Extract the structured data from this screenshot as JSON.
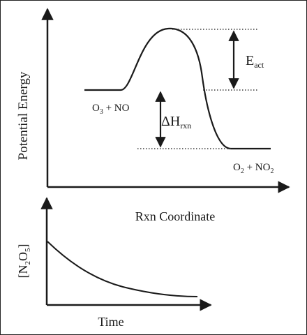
{
  "energy_diagram": {
    "y_axis_label": "Potential Energy",
    "x_axis_label": "Rxn Coordinate",
    "reactants": {
      "main": "O",
      "sub1": "3",
      "rest": " + NO"
    },
    "products": {
      "main": "O",
      "sub1": "2",
      "rest": " + NO",
      "sub2": "2"
    },
    "activation_energy": {
      "main": "E",
      "sub": "act"
    },
    "enthalpy_change": {
      "main": "ΔH",
      "sub": "rxn"
    }
  },
  "decay_plot": {
    "y_axis_label": {
      "open": "[N",
      "sub1": "2",
      "mid": "O",
      "sub2": "5",
      "close": "]"
    },
    "x_axis_label": "Time"
  },
  "colors": {
    "ink": "#1a1a1a",
    "background": "#ffffff"
  }
}
